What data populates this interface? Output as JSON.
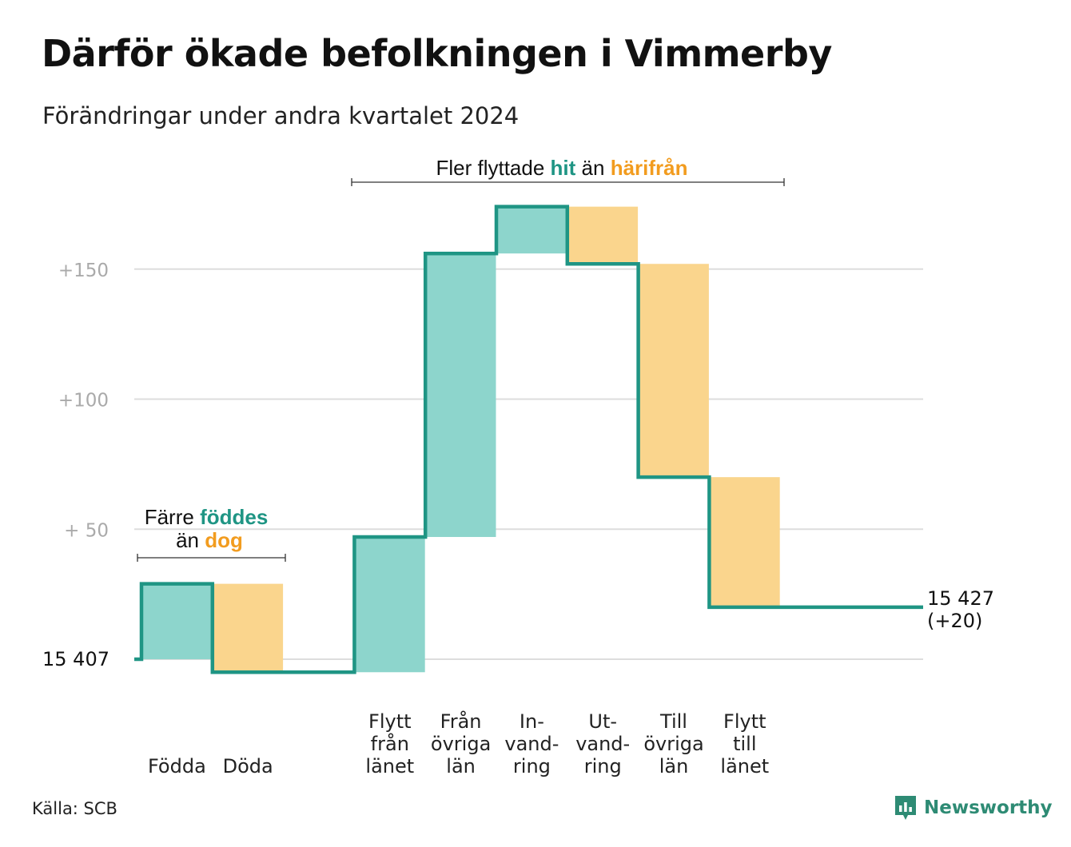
{
  "title": "Därför ökade befolkningen i Vimmerby",
  "subtitle": "Förändringar under andra kvartalet 2024",
  "source": "Källa: SCB",
  "brand": "Newsworthy",
  "colors": {
    "line": "#1f9584",
    "increase": "#8dd5cc",
    "decrease": "#fad58d",
    "accent_teal": "#1f9584",
    "accent_orange": "#f29c1f",
    "grid": "#dddddd",
    "tick_text": "#aaaaaa"
  },
  "annotations": {
    "births": {
      "line1_prefix": "Färre",
      "line1_highlight": "föddes",
      "line2_prefix": "än",
      "line2_highlight": "dog"
    },
    "migration": {
      "prefix": "Fler flyttade",
      "highlight1": "hit",
      "middle": "än",
      "highlight2": "härifrån"
    }
  },
  "chart_data": {
    "type": "waterfall",
    "title": "Därför ökade befolkningen i Vimmerby",
    "subtitle": "Förändringar under andra kvartalet 2024",
    "start": {
      "label": "15  407",
      "value": 15407
    },
    "end": {
      "label": "15 427",
      "change_label": "(+20)",
      "value": 15427
    },
    "categories": [
      {
        "lines": [
          "Födda"
        ],
        "change": 29
      },
      {
        "lines": [
          "Döda"
        ],
        "change": -34
      },
      {
        "lines": [],
        "change": 0
      },
      {
        "lines": [
          "Flytt",
          "från",
          "länet"
        ],
        "change": 52
      },
      {
        "lines": [
          "Från",
          "övriga",
          "län"
        ],
        "change": 109
      },
      {
        "lines": [
          "In-",
          "vand-",
          "ring"
        ],
        "change": 18
      },
      {
        "lines": [
          "Ut-",
          "vand-",
          "ring"
        ],
        "change": -22
      },
      {
        "lines": [
          "Till",
          "övriga",
          "län"
        ],
        "change": -82
      },
      {
        "lines": [
          "Flytt",
          "till",
          "länet"
        ],
        "change": -50
      }
    ],
    "y_ticks": [
      {
        "value": 50,
        "label": "+  50"
      },
      {
        "value": 100,
        "label": "+100"
      },
      {
        "value": 150,
        "label": "+150"
      }
    ],
    "ylim": [
      -5,
      175
    ],
    "grid": true
  }
}
